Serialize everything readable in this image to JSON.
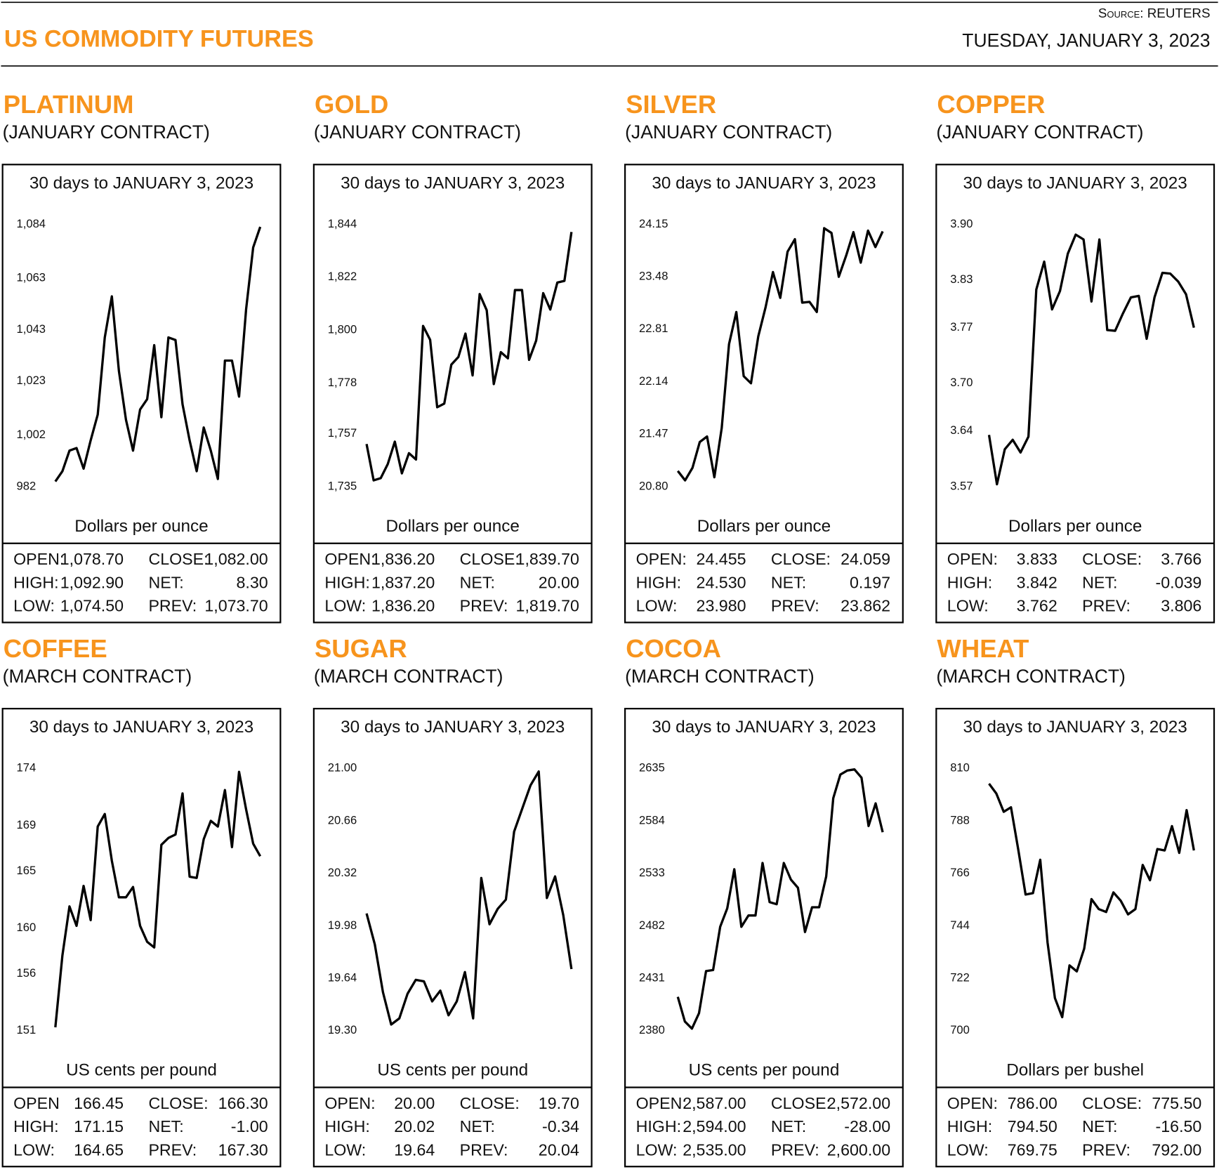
{
  "header": {
    "title": "US COMMODITY FUTURES",
    "source": "Source: REUTERS",
    "date": "TUESDAY, JANUARY 3, 2023"
  },
  "chart_data": [
    {
      "type": "line",
      "title": "PLATINUM",
      "subtitle": "(JANUARY CONTRACT)",
      "caption": "30 days to JANUARY 3, 2023",
      "ylabel": "Dollars per ounce",
      "color": "#000000",
      "values": [
        984,
        988,
        996,
        997,
        989,
        1000,
        1010,
        1040,
        1056,
        1027,
        1008,
        996,
        1012,
        1016,
        1037,
        1009,
        1040,
        1039,
        1014,
        1000,
        988,
        1005,
        996,
        985,
        1031,
        1031,
        1017,
        1051,
        1075,
        1083
      ],
      "ylim": [
        982,
        1084
      ],
      "yticks": [
        982,
        {
          "value": 1002,
          "label": "1,002"
        },
        {
          "value": 1023,
          "label": "1,023"
        },
        {
          "value": 1043,
          "label": "1,043"
        },
        {
          "value": 1063,
          "label": "1,063"
        },
        {
          "value": 1084,
          "label": "1,084"
        }
      ],
      "stats": [
        [
          "OPEN:",
          "1,078.70",
          "CLOSE:",
          "1,082.00"
        ],
        [
          "HIGH:",
          "1,092.90",
          "NET:",
          "8.30"
        ],
        [
          "LOW:",
          "1,074.50",
          "PREV:",
          "1,073.70"
        ]
      ]
    },
    {
      "type": "line",
      "title": "GOLD",
      "subtitle": "(JANUARY CONTRACT)",
      "caption": "30 days to JANUARY 3, 2023",
      "ylabel": "Dollars per ounce",
      "color": "#000000",
      "values": [
        1752.7,
        1737.6,
        1738.5,
        1744.4,
        1753.7,
        1740.5,
        1748.9,
        1746.3,
        1801.8,
        1796,
        1768,
        1769.5,
        1785.7,
        1788.9,
        1798.6,
        1781.2,
        1815,
        1808.3,
        1777.6,
        1790.9,
        1788.3,
        1816.7,
        1816.7,
        1787.7,
        1795.7,
        1815.4,
        1808.6,
        1819.8,
        1820.5,
        1840.8
      ],
      "ylim": [
        1735,
        1844
      ],
      "yticks": [
        {
          "value": 1735,
          "label": "1,735"
        },
        {
          "value": 1757,
          "label": "1,757"
        },
        {
          "value": 1778,
          "label": "1,778"
        },
        {
          "value": 1800,
          "label": "1,800"
        },
        {
          "value": 1822,
          "label": "1,822"
        },
        {
          "value": 1844,
          "label": "1,844"
        }
      ],
      "stats": [
        [
          "OPEN:",
          "1,836.20",
          "CLOSE:",
          "1,839.70"
        ],
        [
          "HIGH:",
          "1,837.20",
          "NET:",
          "20.00"
        ],
        [
          "LOW:",
          "1,836.20",
          "PREV:",
          "1,819.70"
        ]
      ]
    },
    {
      "type": "line",
      "title": "SILVER",
      "subtitle": "(JANUARY CONTRACT)",
      "caption": "30 days to JANUARY 3, 2023",
      "ylabel": "Dollars per ounce",
      "color": "#000000",
      "values": [
        21.0,
        20.88,
        21.04,
        21.37,
        21.44,
        20.92,
        21.55,
        22.62,
        23.03,
        22.21,
        22.12,
        22.72,
        23.09,
        23.54,
        23.21,
        23.8,
        23.96,
        23.15,
        23.16,
        23.03,
        24.1,
        24.04,
        23.48,
        23.75,
        24.05,
        23.66,
        24.07,
        23.86,
        24.06
      ],
      "ylim": [
        20.8,
        24.15
      ],
      "yticks": [
        {
          "value": 20.8,
          "label": "20.80"
        },
        21.47,
        22.14,
        22.81,
        23.48,
        24.15
      ],
      "stats": [
        [
          "OPEN:",
          "24.455",
          "CLOSE:",
          "24.059"
        ],
        [
          "HIGH:",
          "24.530",
          "NET:",
          "0.197"
        ],
        [
          "LOW:",
          "23.980",
          "PREV:",
          "23.862"
        ]
      ]
    },
    {
      "type": "line",
      "title": "COPPER",
      "subtitle": "(JANUARY CONTRACT)",
      "caption": "30 days to JANUARY 3, 2023",
      "ylabel": "Dollars per ounce",
      "color": "#000000",
      "values": [
        3.635,
        3.573,
        3.617,
        3.629,
        3.613,
        3.633,
        3.818,
        3.853,
        3.793,
        3.816,
        3.863,
        3.887,
        3.881,
        3.803,
        3.881,
        3.767,
        3.766,
        3.788,
        3.808,
        3.81,
        3.756,
        3.808,
        3.839,
        3.838,
        3.828,
        3.812,
        3.77
      ],
      "ylim": [
        3.57,
        3.9
      ],
      "yticks": [
        3.57,
        3.64,
        {
          "value": 3.7,
          "label": "3.70"
        },
        3.77,
        3.83,
        {
          "value": 3.9,
          "label": "3.90"
        }
      ],
      "stats": [
        [
          "OPEN:",
          "3.833",
          "CLOSE:",
          "3.766"
        ],
        [
          "HIGH:",
          "3.842",
          "NET:",
          "-0.039"
        ],
        [
          "LOW:",
          "3.762",
          "PREV:",
          "3.806"
        ]
      ]
    },
    {
      "type": "line",
      "title": "COFFEE",
      "subtitle": "(MARCH CONTRACT)",
      "caption": "30 days to JANUARY 3, 2023",
      "ylabel": "US cents per pound",
      "color": "#000000",
      "values": [
        151.3,
        157.6,
        161.9,
        160.2,
        163.7,
        160.7,
        168.9,
        170,
        165.9,
        162.7,
        162.7,
        163.6,
        160.2,
        158.8,
        158.3,
        167.3,
        167.9,
        168.2,
        171.8,
        164.5,
        164.4,
        167.8,
        169.4,
        168.9,
        172.1,
        167.1,
        173.7,
        170.4,
        167.4,
        166.3
      ],
      "ylim": [
        151,
        174
      ],
      "yticks": [
        151,
        156,
        160,
        165,
        169,
        174
      ],
      "stats": [
        [
          "OPEN",
          "166.45",
          "CLOSE:",
          "166.30"
        ],
        [
          "HIGH:",
          "171.15",
          "NET:",
          "-1.00"
        ],
        [
          "LOW:",
          "164.65",
          "PREV:",
          "167.30"
        ]
      ]
    },
    {
      "type": "line",
      "title": "SUGAR",
      "subtitle": "(MARCH CONTRACT)",
      "caption": "30 days to JANUARY 3, 2023",
      "ylabel": "US cents per pound",
      "color": "#000000",
      "values": [
        20.06,
        19.86,
        19.55,
        19.34,
        19.38,
        19.54,
        19.63,
        19.62,
        19.49,
        19.56,
        19.4,
        19.49,
        19.68,
        19.38,
        20.29,
        19.99,
        20.09,
        20.15,
        20.59,
        20.74,
        20.89,
        20.98,
        20.16,
        20.3,
        20.05,
        19.7
      ],
      "ylim": [
        19.3,
        21
      ],
      "yticks": [
        {
          "value": 19.3,
          "label": "19.30"
        },
        19.64,
        19.98,
        20.32,
        20.66,
        {
          "value": 21,
          "label": "21.00"
        }
      ],
      "stats": [
        [
          "OPEN:",
          "20.00",
          "CLOSE:",
          "19.70"
        ],
        [
          "HIGH:",
          "20.02",
          "NET:",
          "-0.34"
        ],
        [
          "LOW:",
          "19.64",
          "PREV:",
          "20.04"
        ]
      ]
    },
    {
      "type": "line",
      "title": "COCOA",
      "subtitle": "(MARCH CONTRACT)",
      "caption": "30 days to JANUARY 3, 2023",
      "ylabel": "US cents per pound",
      "color": "#000000",
      "values": [
        2413,
        2389,
        2382,
        2397,
        2438,
        2439,
        2481,
        2499,
        2537,
        2481,
        2492,
        2492,
        2543,
        2505,
        2503,
        2543,
        2527,
        2519,
        2476,
        2500,
        2500,
        2530,
        2606,
        2629,
        2633,
        2634,
        2626,
        2579,
        2601,
        2573
      ],
      "ylim": [
        2380,
        2635
      ],
      "yticks": [
        2380,
        2431,
        2482,
        2533,
        2584,
        2635
      ],
      "stats": [
        [
          "OPEN:",
          "2,587.00",
          "CLOSE:",
          "2,572.00"
        ],
        [
          "HIGH:",
          "2,594.00",
          "NET:",
          "-28.00"
        ],
        [
          "LOW:",
          "2,535.00",
          "PREV:",
          "2,600.00"
        ]
      ]
    },
    {
      "type": "line",
      "title": "WHEAT",
      "subtitle": "(MARCH CONTRACT)",
      "caption": "30 days to JANUARY 3, 2023",
      "ylabel": "Dollars per bushel",
      "color": "#000000",
      "values": [
        803.6,
        799.5,
        791.8,
        793.7,
        775.9,
        757.1,
        757.7,
        771.7,
        737,
        713.7,
        705.7,
        727.4,
        724.9,
        734.4,
        755.2,
        751,
        749.8,
        758,
        754.5,
        748.8,
        751,
        769.5,
        763.1,
        776.2,
        775.6,
        785.8,
        774.6,
        792.5,
        775.6
      ],
      "ylim": [
        700,
        810
      ],
      "yticks": [
        700,
        722,
        744,
        766,
        788,
        810
      ],
      "stats": [
        [
          "OPEN:",
          "786.00",
          "CLOSE:",
          "775.50"
        ],
        [
          "HIGH:",
          "794.50",
          "NET:",
          "-16.50"
        ],
        [
          "LOW:",
          "769.75",
          "PREV:",
          "792.00"
        ]
      ]
    }
  ]
}
